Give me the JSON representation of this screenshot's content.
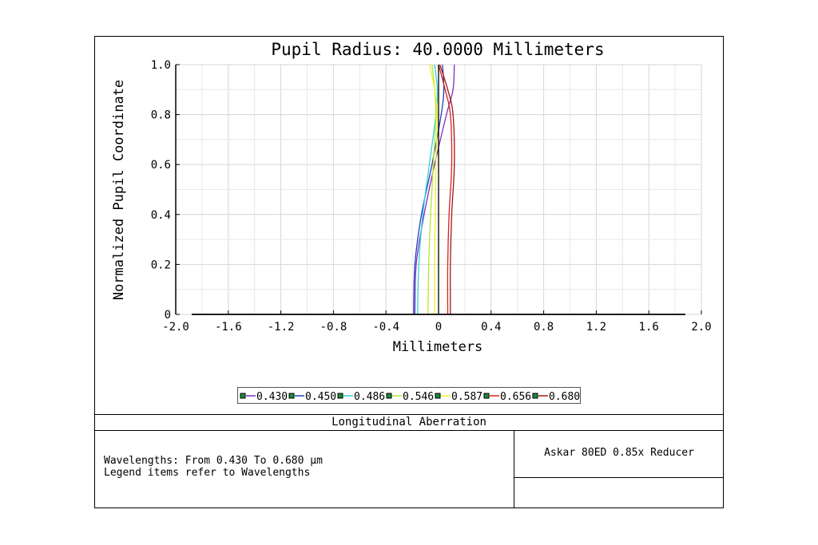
{
  "chart_data": {
    "type": "line",
    "title": "Pupil Radius: 40.0000 Millimeters",
    "xlabel": "Millimeters",
    "ylabel": "Normalized Pupil Coordinate",
    "xlim": [
      -2.0,
      2.0
    ],
    "ylim": [
      0,
      1.0
    ],
    "xticks": [
      "-2.0",
      "-1.6",
      "-1.2",
      "-0.8",
      "-0.4",
      "0",
      "0.4",
      "0.8",
      "1.2",
      "1.6",
      "2.0"
    ],
    "yticks": [
      "0",
      "0.2",
      "0.4",
      "0.6",
      "0.8",
      "1.0"
    ],
    "grid": true,
    "legend_position": "bottom",
    "series": [
      {
        "name": "0.430",
        "color": "#7b2fbf",
        "y": [
          0,
          0.2,
          0.4,
          0.6,
          0.8,
          0.9,
          1.0
        ],
        "x": [
          -0.18,
          -0.17,
          -0.11,
          -0.03,
          0.06,
          0.11,
          0.12
        ]
      },
      {
        "name": "0.450",
        "color": "#1f3fbf",
        "y": [
          0,
          0.2,
          0.4,
          0.6,
          0.8,
          0.9,
          1.0
        ],
        "x": [
          -0.19,
          -0.18,
          -0.13,
          -0.05,
          0.02,
          0.04,
          0.03
        ]
      },
      {
        "name": "0.486",
        "color": "#2fd0d8",
        "y": [
          0,
          0.2,
          0.4,
          0.6,
          0.8,
          0.9,
          1.0
        ],
        "x": [
          -0.16,
          -0.15,
          -0.12,
          -0.07,
          -0.02,
          -0.01,
          -0.03
        ]
      },
      {
        "name": "0.546",
        "color": "#b8e62e",
        "y": [
          0,
          0.2,
          0.4,
          0.6,
          0.8,
          0.9,
          1.0
        ],
        "x": [
          -0.08,
          -0.075,
          -0.06,
          -0.04,
          -0.02,
          -0.03,
          -0.05
        ]
      },
      {
        "name": "0.587",
        "color": "#f0f030",
        "y": [
          0,
          0.2,
          0.4,
          0.6,
          0.8,
          0.9,
          1.0
        ],
        "x": [
          -0.03,
          -0.03,
          -0.025,
          -0.02,
          -0.01,
          -0.03,
          -0.07
        ]
      },
      {
        "name": "0.656",
        "color": "#d82020",
        "y": [
          0,
          0.2,
          0.4,
          0.6,
          0.8,
          0.9,
          1.0
        ],
        "x": [
          0.07,
          0.07,
          0.08,
          0.1,
          0.09,
          0.05,
          0.0
        ]
      },
      {
        "name": "0.680",
        "color": "#a01818",
        "y": [
          0,
          0.2,
          0.4,
          0.6,
          0.8,
          0.9,
          1.0
        ],
        "x": [
          0.09,
          0.09,
          0.1,
          0.12,
          0.11,
          0.07,
          0.01
        ]
      }
    ]
  },
  "footer": {
    "caption": "Longitudinal Aberration",
    "note_line1": "Wavelengths: From 0.430 To 0.680 µm",
    "note_line2": "Legend items refer to Wavelengths",
    "system_name": "Askar 80ED 0.85x Reducer"
  }
}
